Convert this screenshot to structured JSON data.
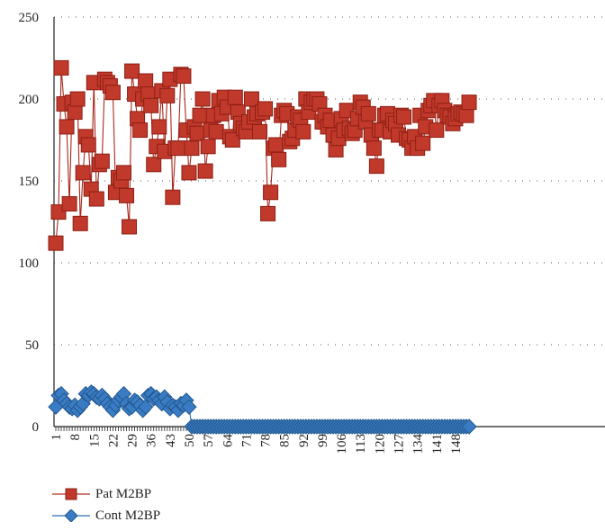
{
  "chart_data": {
    "type": "line",
    "xlim": [
      1,
      153
    ],
    "ylim": [
      0,
      250
    ],
    "y_ticks": [
      0,
      50,
      100,
      150,
      200,
      250
    ],
    "x_tick_labels": [
      "1",
      "8",
      "15",
      "22",
      "29",
      "36",
      "43",
      "50",
      "57",
      "64",
      "71",
      "78",
      "85",
      "92",
      "99",
      "106",
      "113",
      "120",
      "127",
      "134",
      "141",
      "148"
    ],
    "grid": "horizontal dotted",
    "legend_position": "bottom-left",
    "series": [
      {
        "name": "Pat M2BP",
        "color": "#c0392b",
        "marker": "square",
        "x": [
          1,
          2,
          3,
          4,
          5,
          6,
          7,
          8,
          9,
          10,
          11,
          12,
          13,
          14,
          15,
          16,
          17,
          18,
          19,
          20,
          21,
          22,
          23,
          24,
          25,
          26,
          27,
          28,
          29,
          30,
          31,
          32,
          33,
          34,
          35,
          36,
          37,
          38,
          39,
          40,
          41,
          42,
          43,
          44,
          45,
          46,
          47,
          48,
          49,
          50,
          51,
          52,
          53,
          54,
          55,
          56,
          57,
          58,
          59,
          60,
          61,
          62,
          63,
          64,
          65,
          66,
          67,
          68,
          69,
          70,
          71,
          72,
          73,
          74,
          75,
          76,
          77,
          78,
          79,
          80,
          81,
          82,
          83,
          84,
          85,
          86,
          87,
          88,
          89,
          90,
          91,
          92,
          93,
          94,
          95,
          96,
          97,
          98,
          99,
          100,
          101,
          102,
          103,
          104,
          105,
          106,
          107,
          108,
          109,
          110,
          111,
          112,
          113,
          114,
          115,
          116,
          117,
          118,
          119,
          120,
          121,
          122,
          123,
          124,
          125,
          126,
          127,
          128,
          129,
          130,
          131,
          132,
          133,
          134,
          135,
          136,
          137,
          138,
          139,
          140,
          141,
          142,
          143,
          144,
          145,
          146,
          147,
          148,
          149,
          150,
          151,
          152,
          153
        ],
        "values": [
          112,
          131,
          219,
          197,
          183,
          136,
          198,
          192,
          200,
          124,
          155,
          177,
          172,
          145,
          210,
          139,
          160,
          162,
          212,
          210,
          208,
          204,
          143,
          152,
          150,
          155,
          141,
          122,
          217,
          203,
          188,
          181,
          200,
          211,
          203,
          196,
          160,
          171,
          183,
          205,
          168,
          202,
          212,
          140,
          170,
          170,
          215,
          214,
          181,
          155,
          170,
          183,
          179,
          190,
          200,
          156,
          171,
          181,
          190,
          180,
          199,
          191,
          201,
          195,
          177,
          175,
          201,
          192,
          185,
          182,
          180,
          186,
          200,
          189,
          191,
          180,
          192,
          194,
          130,
          143,
          170,
          172,
          163,
          190,
          193,
          191,
          174,
          176,
          181,
          189,
          187,
          180,
          200,
          192,
          198,
          200,
          200,
          197,
          186,
          190,
          183,
          187,
          178,
          169,
          176,
          188,
          181,
          193,
          182,
          179,
          181,
          188,
          198,
          195,
          186,
          191,
          178,
          170,
          159,
          181,
          181,
          190,
          191,
          180,
          187,
          185,
          178,
          190,
          189,
          176,
          175,
          170,
          177,
          170,
          190,
          173,
          183,
          193,
          196,
          199,
          181,
          196,
          199,
          193,
          190,
          189,
          185,
          188,
          191,
          192,
          191,
          190,
          198
        ]
      },
      {
        "name": "Cont M2BP",
        "color": "#3a7cc4",
        "marker": "diamond",
        "x": [
          1,
          2,
          3,
          4,
          5,
          6,
          7,
          8,
          9,
          10,
          11,
          12,
          13,
          14,
          15,
          16,
          17,
          18,
          19,
          20,
          21,
          22,
          23,
          24,
          25,
          26,
          27,
          28,
          29,
          30,
          31,
          32,
          33,
          34,
          35,
          36,
          37,
          38,
          39,
          40,
          41,
          42,
          43,
          44,
          45,
          46,
          47,
          48,
          49,
          50,
          51,
          52,
          53,
          54,
          55,
          56,
          57,
          58,
          59,
          60,
          61,
          62,
          63,
          64,
          65,
          66,
          67,
          68,
          69,
          70,
          71,
          72,
          73,
          74,
          75,
          76,
          77,
          78,
          79,
          80,
          81,
          82,
          83,
          84,
          85,
          86,
          87,
          88,
          89,
          90,
          91,
          92,
          93,
          94,
          95,
          96,
          97,
          98,
          99,
          100,
          101,
          102,
          103,
          104,
          105,
          106,
          107,
          108,
          109,
          110,
          111,
          112,
          113,
          114,
          115,
          116,
          117,
          118,
          119,
          120,
          121,
          122,
          123,
          124,
          125,
          126,
          127,
          128,
          129,
          130,
          131,
          132,
          133,
          134,
          135,
          136,
          137,
          138,
          139,
          140,
          141,
          142,
          143,
          144,
          145,
          146,
          147,
          148,
          149,
          150,
          151,
          152,
          153
        ],
        "values": [
          12,
          19,
          20,
          16,
          14,
          12,
          11,
          13,
          10,
          12,
          14,
          20,
          19,
          21,
          20,
          18,
          17,
          19,
          17,
          14,
          12,
          10,
          13,
          16,
          18,
          20,
          14,
          11,
          12,
          16,
          15,
          13,
          10,
          12,
          19,
          20,
          17,
          18,
          16,
          14,
          18,
          15,
          11,
          13,
          12,
          10,
          14,
          13,
          16,
          12,
          0,
          0,
          0,
          0,
          0,
          0,
          0,
          0,
          0,
          0,
          0,
          0,
          0,
          0,
          0,
          0,
          0,
          0,
          0,
          0,
          0,
          0,
          0,
          0,
          0,
          0,
          0,
          0,
          0,
          0,
          0,
          0,
          0,
          0,
          0,
          0,
          0,
          0,
          0,
          0,
          0,
          0,
          0,
          0,
          0,
          0,
          0,
          0,
          0,
          0,
          0,
          0,
          0,
          0,
          0,
          0,
          0,
          0,
          0,
          0,
          0,
          0,
          0,
          0,
          0,
          0,
          0,
          0,
          0,
          0,
          0,
          0,
          0,
          0,
          0,
          0,
          0,
          0,
          0,
          0,
          0,
          0,
          0,
          0,
          0,
          0,
          0,
          0,
          0,
          0,
          0,
          0,
          0,
          0,
          0,
          0,
          0,
          0,
          0,
          0,
          0,
          0,
          0
        ]
      }
    ]
  }
}
